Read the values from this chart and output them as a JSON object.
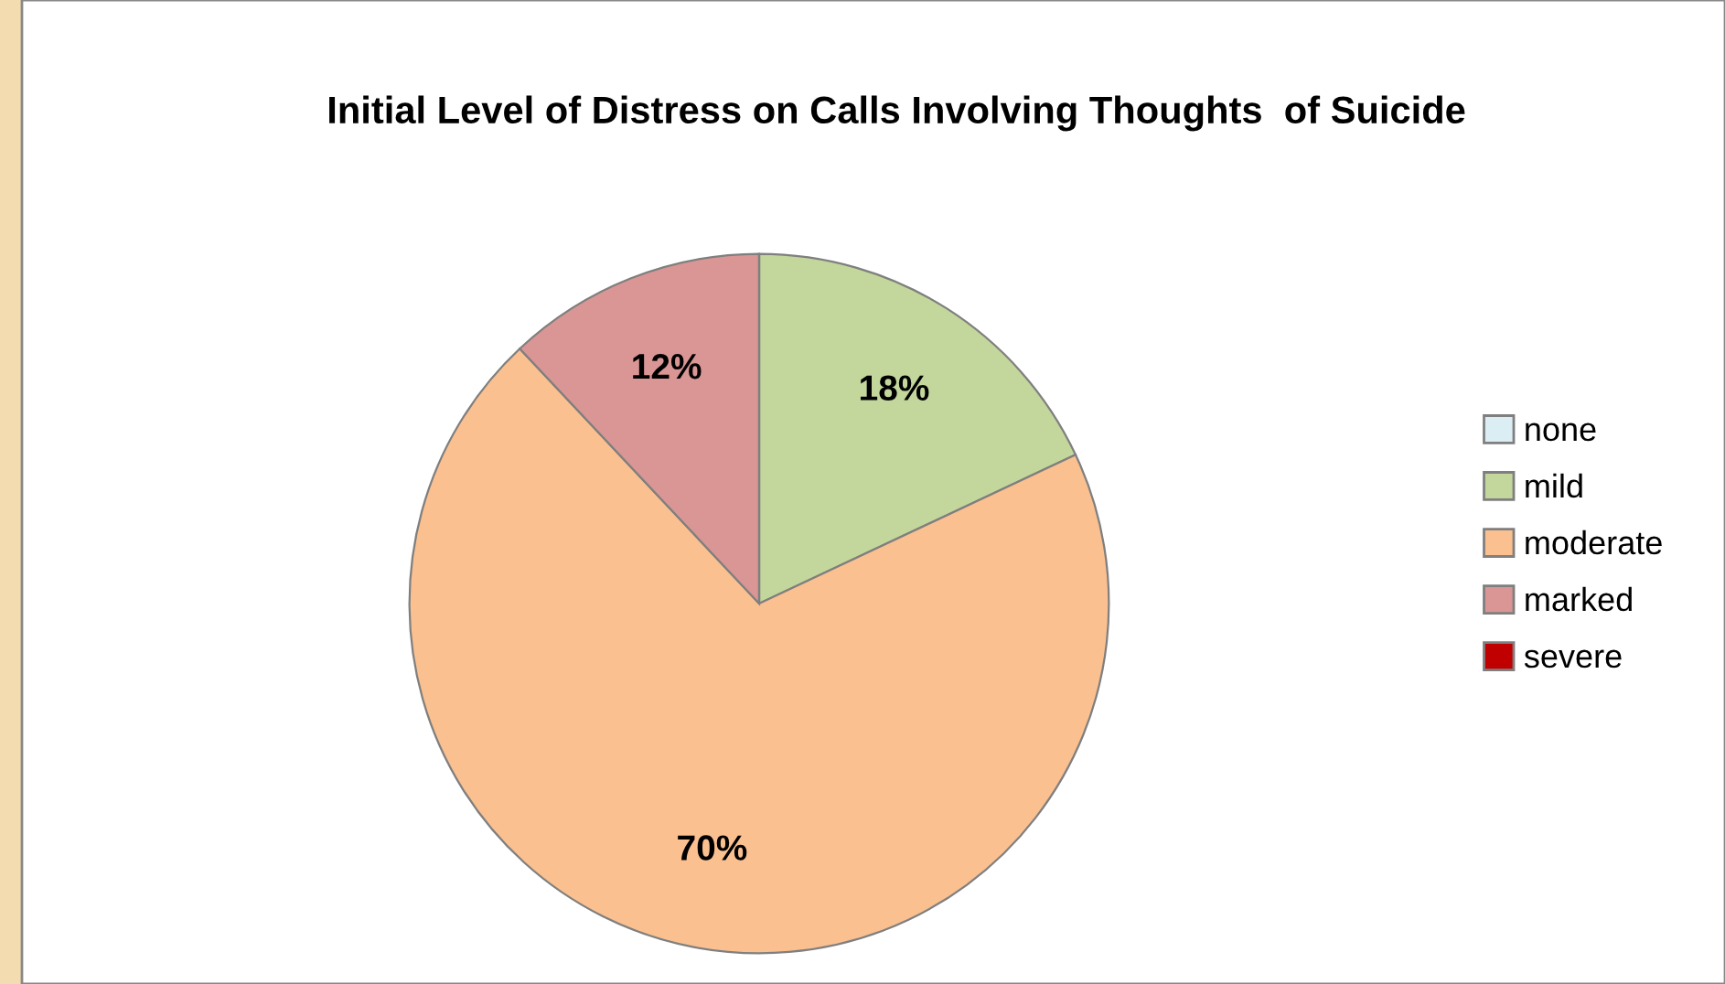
{
  "chart_data": {
    "type": "pie",
    "title": "Initial Level of Distress on Calls Involving Thoughts  of Suicide",
    "categories": [
      "none",
      "mild",
      "moderate",
      "marked",
      "severe"
    ],
    "values": [
      0,
      18,
      70,
      12,
      0
    ],
    "colors": [
      "#dbeef4",
      "#c3d69b",
      "#fac090",
      "#d99694",
      "#c00000"
    ],
    "value_labels": [
      null,
      "18%",
      "70%",
      "12%",
      null
    ],
    "legend": "right"
  }
}
